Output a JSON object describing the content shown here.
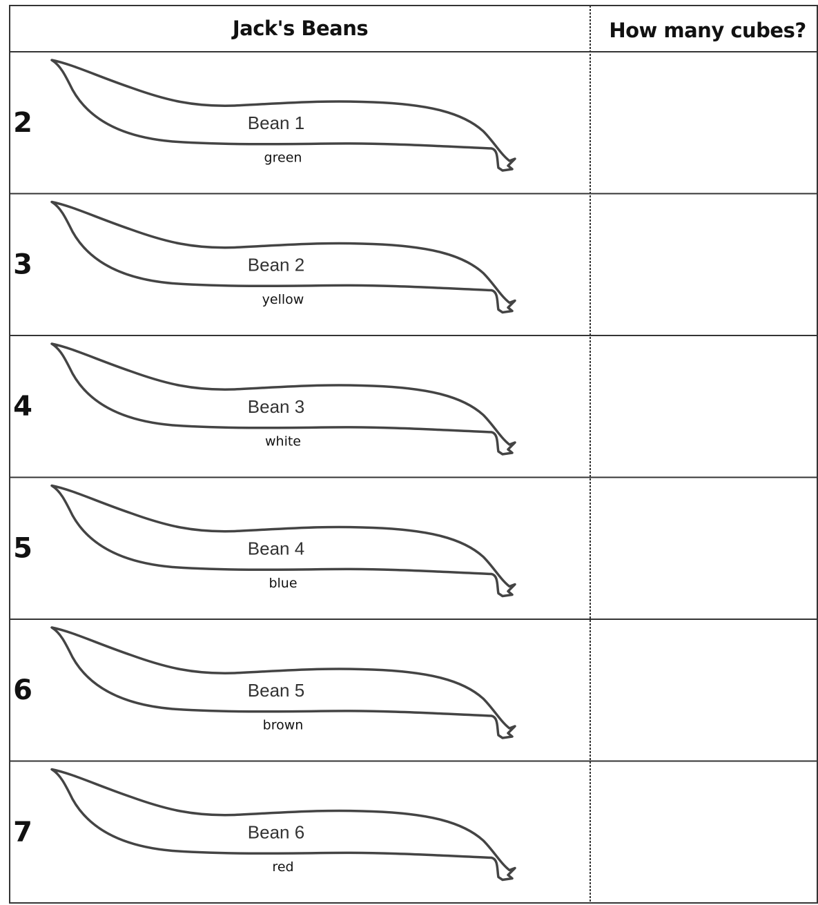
{
  "header": {
    "columns": [
      "Jack's Beans",
      "How many cubes?"
    ]
  },
  "rows": [
    {
      "number": 2,
      "label": "Bean 1",
      "color": "green"
    },
    {
      "number": 3,
      "label": "Bean 2",
      "color": "yellow"
    },
    {
      "number": 4,
      "label": "Bean 3",
      "color": "white"
    },
    {
      "number": 5,
      "label": "Bean 4",
      "color": "blue"
    },
    {
      "number": 6,
      "label": "Bean 5",
      "color": "brown"
    },
    {
      "number": 7,
      "label": "Bean 6",
      "color": "red"
    }
  ]
}
